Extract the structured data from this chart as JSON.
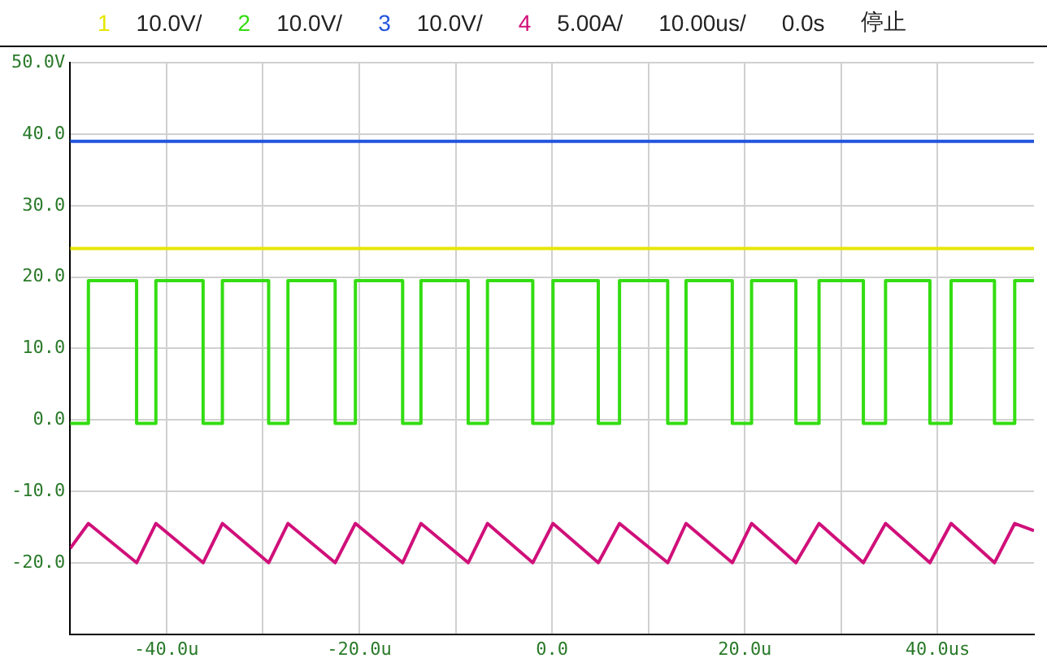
{
  "chart_data": {
    "type": "line",
    "legend": "top",
    "grid": true,
    "marker": "none",
    "annotations": [
      "10.0V/",
      "10.0V/",
      "10.0V/",
      "5.00A/",
      "10.00us/",
      "0.0s",
      "停止"
    ],
    "xlim": [
      -50,
      50
    ],
    "xticks": [
      {
        "value": -40,
        "label": "-40.0u"
      },
      {
        "value": -30,
        "label": null
      },
      {
        "value": -20,
        "label": "-20.0u"
      },
      {
        "value": -10,
        "label": null
      },
      {
        "value": 0,
        "label": "0.0"
      },
      {
        "value": 10,
        "label": null
      },
      {
        "value": 20,
        "label": "20.0u"
      },
      {
        "value": 30,
        "label": null
      },
      {
        "value": 40,
        "label": "40.0us"
      }
    ],
    "ylim": [
      -30,
      50
    ],
    "yticks": [
      {
        "value": 50,
        "label": "50.0V"
      },
      {
        "value": 40,
        "label": "40.0"
      },
      {
        "value": 30,
        "label": "30.0"
      },
      {
        "value": 20,
        "label": "20.0"
      },
      {
        "value": 10,
        "label": "10.0"
      },
      {
        "value": 0,
        "label": "0.0"
      },
      {
        "value": -10,
        "label": "-10.0"
      },
      {
        "value": -20,
        "label": "-20.0"
      }
    ],
    "series": [
      {
        "name": "1",
        "color": "#e6e600",
        "x": [
          -50,
          50
        ],
        "values": [
          24,
          24
        ]
      },
      {
        "name": "2",
        "color": "#33dd11",
        "x": [
          -50,
          -48.1,
          -48.1,
          -43.1,
          -43.1,
          -41.1,
          -41.1,
          -36.2,
          -36.2,
          -34.2,
          -34.2,
          -29.4,
          -29.4,
          -27.4,
          -27.4,
          -22.5,
          -22.5,
          -20.4,
          -20.4,
          -15.5,
          -15.5,
          -13.6,
          -13.6,
          -8.7,
          -8.7,
          -6.7,
          -6.7,
          -2.0,
          -2.0,
          0.1,
          0.1,
          4.8,
          4.8,
          7.0,
          7.0,
          12.0,
          12.0,
          13.9,
          13.9,
          18.7,
          18.7,
          20.7,
          20.7,
          25.3,
          25.3,
          27.7,
          27.7,
          32.3,
          32.3,
          34.6,
          34.6,
          39.2,
          39.2,
          41.4,
          41.4,
          45.9,
          45.9,
          48.0,
          48.0,
          50
        ],
        "values": [
          -0.5,
          -0.5,
          19.5,
          19.5,
          -0.5,
          -0.5,
          19.5,
          19.5,
          -0.5,
          -0.5,
          19.5,
          19.5,
          -0.5,
          -0.5,
          19.5,
          19.5,
          -0.5,
          -0.5,
          19.5,
          19.5,
          -0.5,
          -0.5,
          19.5,
          19.5,
          -0.5,
          -0.5,
          19.5,
          19.5,
          -0.5,
          -0.5,
          19.5,
          19.5,
          -0.5,
          -0.5,
          19.5,
          19.5,
          -0.5,
          -0.5,
          19.5,
          19.5,
          -0.5,
          -0.5,
          19.5,
          19.5,
          -0.5,
          -0.5,
          19.5,
          19.5,
          -0.5,
          -0.5,
          19.5,
          19.5,
          -0.5,
          -0.5,
          19.5,
          19.5,
          -0.5,
          -0.5,
          19.5,
          19.5
        ]
      },
      {
        "name": "3",
        "color": "#2255dd",
        "x": [
          -50,
          50
        ],
        "values": [
          39,
          39
        ]
      },
      {
        "name": "4",
        "color": "#d0107a",
        "x": [
          -50,
          -48.1,
          -43.1,
          -41.1,
          -36.2,
          -34.2,
          -29.4,
          -27.4,
          -22.5,
          -20.4,
          -15.5,
          -13.6,
          -8.7,
          -6.7,
          -2.0,
          0.1,
          4.8,
          7.0,
          12.0,
          13.9,
          18.7,
          20.7,
          25.3,
          27.7,
          32.3,
          34.6,
          39.2,
          41.4,
          45.9,
          48.0,
          50
        ],
        "values": [
          -18,
          -14.5,
          -20,
          -14.5,
          -20,
          -14.5,
          -20,
          -14.5,
          -20,
          -14.5,
          -20,
          -14.5,
          -20,
          -14.5,
          -20,
          -14.5,
          -20,
          -14.5,
          -20,
          -14.5,
          -20,
          -14.5,
          -20,
          -14.5,
          -20,
          -14.5,
          -20,
          -14.5,
          -20,
          -14.5,
          -15.5
        ]
      }
    ]
  }
}
